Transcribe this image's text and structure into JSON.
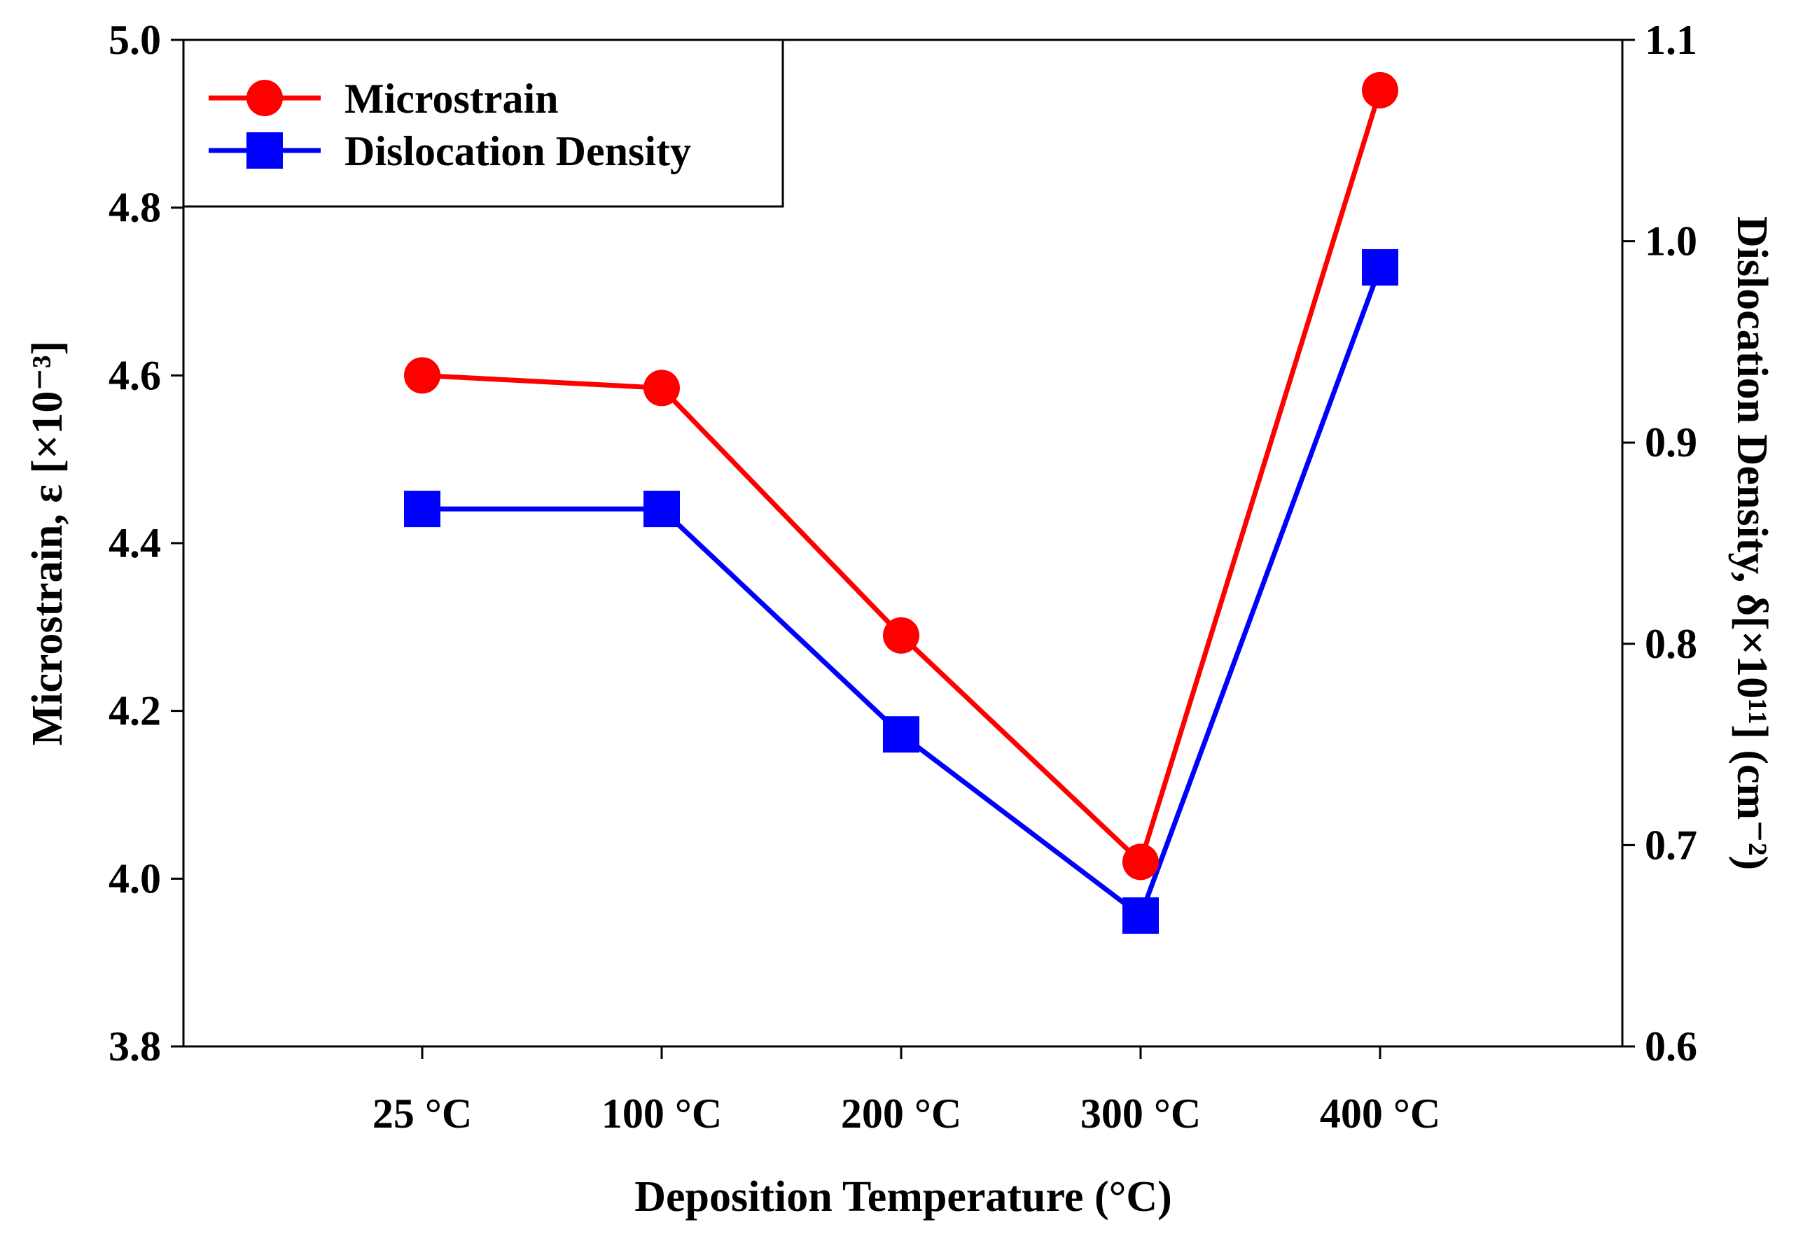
{
  "chart_data": {
    "type": "line",
    "categories": [
      "25 °C",
      "100 °C",
      "200 °C",
      "300 °C",
      "400 °C"
    ],
    "xlabel": "Deposition Temperature (°C)",
    "ylabel_left": "Microstrain,  ε [×10⁻³]",
    "ylabel_right": "Dislocation Density,  δ[×10¹¹] (cm⁻²)",
    "ylim_left": [
      3.8,
      5.0
    ],
    "yticks_left": [
      "3.8",
      "4.0",
      "4.2",
      "4.4",
      "4.6",
      "4.8",
      "5.0"
    ],
    "ylim_right": [
      0.6,
      1.1
    ],
    "yticks_right": [
      "0.6",
      "0.7",
      "0.8",
      "0.9",
      "1.0",
      "1.1"
    ],
    "grid": false,
    "legend_position": "top-left",
    "series": [
      {
        "name": "Microstrain",
        "axis": "left",
        "color": "#ff0000",
        "marker": "circle",
        "values": [
          4.6,
          4.585,
          4.29,
          4.02,
          4.94
        ]
      },
      {
        "name": "Dislocation Density",
        "axis": "right",
        "color": "#0000ff",
        "marker": "square",
        "values": [
          0.867,
          0.867,
          0.755,
          0.665,
          0.987
        ]
      }
    ]
  }
}
